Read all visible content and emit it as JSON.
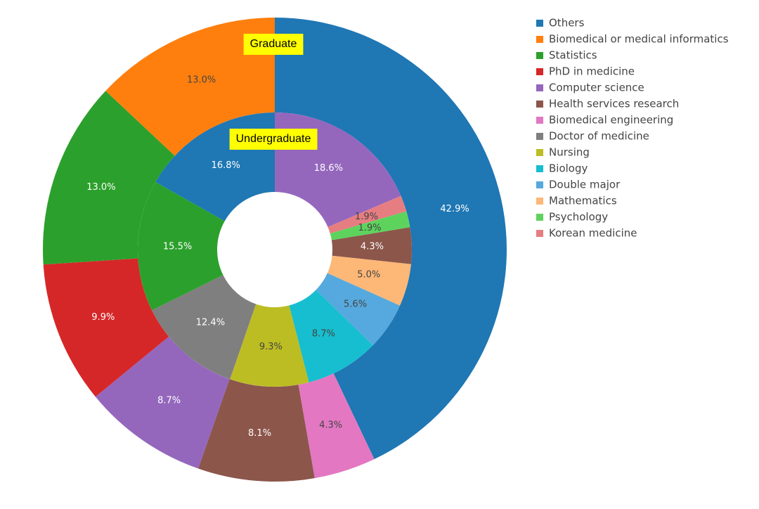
{
  "chart_data": {
    "type": "donut",
    "rings": [
      {
        "name": "Graduate",
        "categories": [
          "Others",
          "Biomedical engineering",
          "Health services research",
          "Computer science",
          "PhD in medicine",
          "Statistics",
          "Biomedical or medical informatics"
        ],
        "values": [
          42.9,
          4.3,
          8.1,
          8.7,
          9.9,
          13.0,
          13.0
        ],
        "value_labels": [
          "42.9%",
          "4.3%",
          "8.1%",
          "8.7%",
          "9.9%",
          "13.0%",
          "13.0%"
        ]
      },
      {
        "name": "Undergraduate",
        "categories": [
          "Computer science",
          "Korean medicine",
          "Psychology",
          "Health services research",
          "Mathematics",
          "Double major",
          "Biology",
          "Nursing",
          "Doctor of medicine",
          "Statistics",
          "Others"
        ],
        "values": [
          18.6,
          1.9,
          1.9,
          4.3,
          5.0,
          5.6,
          8.7,
          9.3,
          12.4,
          15.5,
          16.8
        ],
        "value_labels": [
          "18.6%",
          "1.9%",
          "1.9%",
          "4.3%",
          "5.0%",
          "5.6%",
          "8.7%",
          "9.3%",
          "12.4%",
          "15.5%",
          "16.8%"
        ]
      }
    ],
    "legend": {
      "labels": [
        "Others",
        "Biomedical or medical informatics",
        "Statistics",
        "PhD in medicine",
        "Computer science",
        "Health services research",
        "Biomedical engineering",
        "Doctor of medicine",
        "Nursing",
        "Biology",
        "Double major",
        "Mathematics",
        "Psychology",
        "Korean medicine"
      ],
      "colors": [
        "#1f77b4",
        "#ff7f0e",
        "#2ca02c",
        "#d62728",
        "#9467bd",
        "#8c564b",
        "#e377c2",
        "#7f7f7f",
        "#bcbd22",
        "#17becf",
        "#56a9de",
        "#fdb776",
        "#5dd35d",
        "#e67d81"
      ]
    }
  }
}
